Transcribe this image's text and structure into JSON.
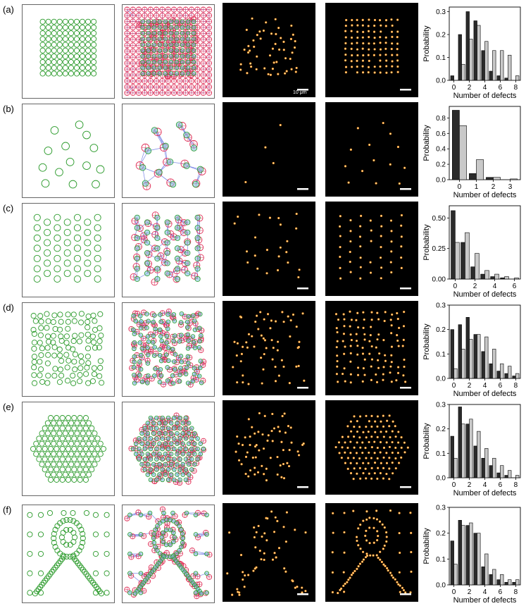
{
  "figure": {
    "rows": [
      {
        "label": "(a)",
        "layout": "square-grid",
        "scale_bar_text": "10 μm",
        "chart": {
          "xticks": [
            "0",
            "2",
            "4",
            "6",
            "8"
          ],
          "yticks": [
            "0.0",
            "0.1",
            "0.2",
            "0.3"
          ],
          "ylim": [
            0,
            0.32
          ]
        }
      },
      {
        "label": "(b)",
        "layout": "sparse-random",
        "scale_bar_text": "",
        "chart": {
          "xticks": [
            "0",
            "1",
            "2",
            "3"
          ],
          "yticks": [
            "0.0",
            "0.2",
            "0.4",
            "0.6",
            "0.8"
          ],
          "ylim": [
            0,
            0.95
          ]
        }
      },
      {
        "label": "(c)",
        "layout": "offset-columns",
        "scale_bar_text": "",
        "chart": {
          "xticks": [
            "0",
            "2",
            "4",
            "6"
          ],
          "yticks": [
            "0.00",
            "0.25",
            "0.50"
          ],
          "ylim": [
            0,
            0.6
          ]
        }
      },
      {
        "label": "(d)",
        "layout": "random-square",
        "scale_bar_text": "",
        "chart": {
          "xticks": [
            "0",
            "2",
            "4",
            "6",
            "8"
          ],
          "yticks": [
            "0.0",
            "0.1",
            "0.2",
            "0.3"
          ],
          "ylim": [
            0,
            0.3
          ]
        }
      },
      {
        "label": "(e)",
        "layout": "hexagon",
        "scale_bar_text": "",
        "chart": {
          "xticks": [
            "0",
            "2",
            "4",
            "6",
            "8"
          ],
          "yticks": [
            "0.0",
            "0.1",
            "0.2",
            "0.3"
          ],
          "ylim": [
            0,
            0.3
          ]
        }
      },
      {
        "label": "(f)",
        "layout": "portrait",
        "scale_bar_text": "",
        "chart": {
          "xticks": [
            "0",
            "2",
            "4",
            "6",
            "8"
          ],
          "yticks": [
            "0.0",
            "0.1",
            "0.2",
            "0.3"
          ],
          "ylim": [
            0,
            0.3
          ]
        }
      }
    ],
    "colors": {
      "target": "#2a9a2a",
      "trap_ring": "#e0335a",
      "trap_fill": "#79bfd8",
      "edge": "#7b86e6",
      "dark_bar": "#2b2b2b",
      "light_bar": "#c9c9c9"
    }
  },
  "chart_data": [
    {
      "type": "bar",
      "panel": "(a)",
      "xlabel": "Number of defects",
      "ylabel": "Probability",
      "ylim": [
        0,
        0.32
      ],
      "x": [
        0,
        1,
        2,
        3,
        4,
        5,
        6,
        7,
        8
      ],
      "series": [
        {
          "values": [
            0.02,
            0.2,
            0.3,
            0.26,
            0.13,
            0.04,
            0.02,
            0.01,
            0.0
          ]
        },
        {
          "values": [
            0.0,
            0.07,
            0.18,
            0.24,
            0.17,
            0.13,
            0.13,
            0.11,
            0.02
          ]
        }
      ]
    },
    {
      "type": "bar",
      "panel": "(b)",
      "xlabel": "Number of defects",
      "ylabel": "Probability",
      "ylim": [
        0,
        0.95
      ],
      "x": [
        0,
        1,
        2,
        3
      ],
      "series": [
        {
          "values": [
            0.9,
            0.08,
            0.03,
            0.0
          ]
        },
        {
          "values": [
            0.7,
            0.26,
            0.03,
            0.01
          ]
        }
      ]
    },
    {
      "type": "bar",
      "panel": "(c)",
      "xlabel": "Number of defects",
      "ylabel": "Probability",
      "ylim": [
        0,
        0.6
      ],
      "x": [
        0,
        1,
        2,
        3,
        4,
        5,
        6
      ],
      "series": [
        {
          "values": [
            0.56,
            0.3,
            0.1,
            0.04,
            0.02,
            0.01,
            0.0
          ]
        },
        {
          "values": [
            0.3,
            0.38,
            0.21,
            0.07,
            0.04,
            0.02,
            0.01
          ]
        }
      ]
    },
    {
      "type": "bar",
      "panel": "(d)",
      "xlabel": "Number of defects",
      "ylabel": "Probability",
      "ylim": [
        0,
        0.3
      ],
      "x": [
        0,
        1,
        2,
        3,
        4,
        5,
        6,
        7,
        8
      ],
      "series": [
        {
          "values": [
            0.2,
            0.22,
            0.25,
            0.18,
            0.11,
            0.06,
            0.03,
            0.02,
            0.01
          ]
        },
        {
          "values": [
            0.04,
            0.12,
            0.16,
            0.18,
            0.17,
            0.12,
            0.06,
            0.05,
            0.02
          ]
        }
      ]
    },
    {
      "type": "bar",
      "panel": "(e)",
      "xlabel": "Number of defects",
      "ylabel": "Probability",
      "ylim": [
        0,
        0.3
      ],
      "x": [
        0,
        1,
        2,
        3,
        4,
        5,
        6,
        7,
        8
      ],
      "series": [
        {
          "values": [
            0.17,
            0.29,
            0.22,
            0.13,
            0.08,
            0.05,
            0.02,
            0.01,
            0.0
          ]
        },
        {
          "values": [
            0.08,
            0.22,
            0.24,
            0.19,
            0.12,
            0.08,
            0.05,
            0.03,
            0.01
          ]
        }
      ]
    },
    {
      "type": "bar",
      "panel": "(f)",
      "xlabel": "Number of defects",
      "ylabel": "Probability",
      "ylim": [
        0,
        0.3
      ],
      "x": [
        0,
        1,
        2,
        3,
        4,
        5,
        6,
        7,
        8
      ],
      "series": [
        {
          "values": [
            0.17,
            0.25,
            0.23,
            0.2,
            0.07,
            0.04,
            0.02,
            0.01,
            0.01
          ]
        },
        {
          "values": [
            0.08,
            0.23,
            0.24,
            0.2,
            0.12,
            0.06,
            0.04,
            0.02,
            0.02
          ]
        }
      ]
    }
  ]
}
